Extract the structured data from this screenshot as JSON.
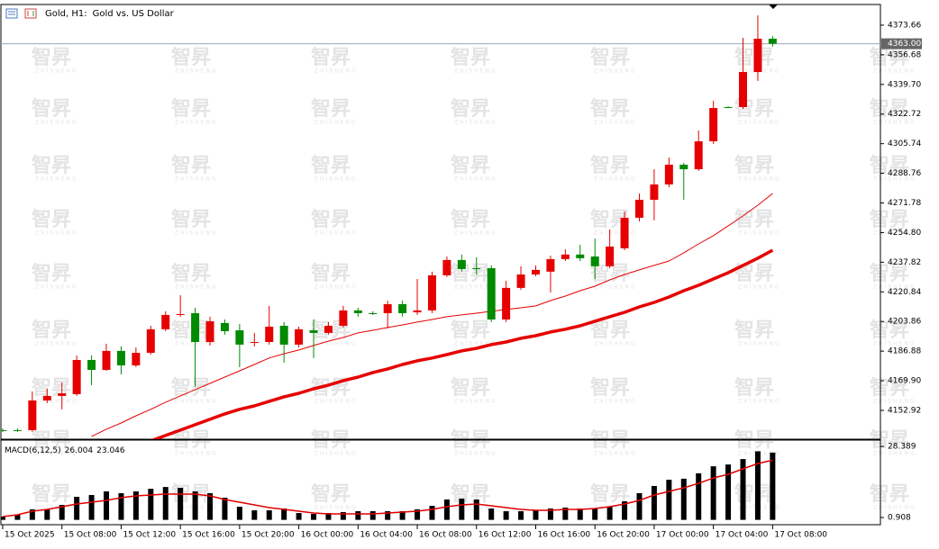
{
  "chart_data": [
    {
      "type": "candlestick",
      "title": "Gold, H1:",
      "subtitle": "Gold vs. US Dollar",
      "watermark": "智昇",
      "watermark_sub": "ZHISHENG",
      "categories": [
        "15 Oct 2025",
        null,
        null,
        null,
        "15 Oct 08:00",
        null,
        null,
        null,
        "15 Oct 12:00",
        null,
        null,
        null,
        "15 Oct 16:00",
        null,
        null,
        null,
        "15 Oct 20:00",
        null,
        null,
        null,
        "16 Oct 00:00",
        null,
        null,
        null,
        "16 Oct 04:00",
        null,
        null,
        null,
        "16 Oct 08:00",
        null,
        null,
        null,
        "16 Oct 12:00",
        null,
        null,
        null,
        "16 Oct 16:00",
        null,
        null,
        null,
        "16 Oct 20:00",
        null,
        null,
        null,
        "17 Oct 00:00",
        null,
        null,
        null,
        "17 Oct 04:00",
        null,
        null,
        null,
        "17 Oct 08:00"
      ],
      "open": [
        4141.6,
        4141.6,
        4141.6,
        4158.6,
        4161.2,
        4162.2,
        4181.8,
        4176.1,
        4187.0,
        4178.7,
        4185.9,
        4199.4,
        4207.6,
        4208.6,
        4192.1,
        4203.0,
        4198.8,
        4191.6,
        4192.1,
        4201.4,
        4190.6,
        4198.8,
        4197.3,
        4201.4,
        4210.2,
        4208.6,
        4208.6,
        4213.8,
        4209.1,
        4210.2,
        4230.3,
        4239.1,
        4234.4,
        4234.4,
        4205.0,
        4223.1,
        4230.8,
        4232.4,
        4239.6,
        4242.2,
        4241.1,
        4235.5,
        4245.8,
        4263.3,
        4273.6,
        4282.4,
        4293.7,
        4291.1,
        4307.1,
        4326.7,
        4326.7,
        4346.8,
        4365.9
      ],
      "high": [
        4142.6,
        4142.6,
        4163.8,
        4165.3,
        4168.9,
        4184.4,
        4184.4,
        4191.1,
        4189.6,
        4189.0,
        4201.4,
        4209.7,
        4218.9,
        4211.7,
        4206.6,
        4205.0,
        4202.4,
        4197.3,
        4212.8,
        4203.5,
        4200.9,
        4205.0,
        4203.5,
        4212.8,
        4211.7,
        4209.7,
        4215.8,
        4215.8,
        4228.2,
        4232.4,
        4241.1,
        4242.2,
        4240.6,
        4236.0,
        4227.2,
        4235.5,
        4236.0,
        4241.6,
        4245.2,
        4247.8,
        4251.4,
        4256.6,
        4266.9,
        4277.2,
        4291.1,
        4297.9,
        4294.8,
        4313.3,
        4330.3,
        4327.3,
        4366.4,
        4379.3,
        4367.5
      ],
      "low": [
        4140.6,
        4140.6,
        4140.6,
        4157.1,
        4153.5,
        4161.2,
        4167.4,
        4175.6,
        4173.6,
        4177.7,
        4184.9,
        4198.3,
        4206.6,
        4166.4,
        4190.1,
        4196.3,
        4177.7,
        4189.6,
        4190.6,
        4180.3,
        4189.0,
        4182.9,
        4196.3,
        4200.4,
        4206.6,
        4207.6,
        4199.9,
        4206.6,
        4207.6,
        4208.6,
        4229.3,
        4232.4,
        4230.8,
        4203.5,
        4203.5,
        4222.0,
        4229.8,
        4220.5,
        4238.5,
        4238.5,
        4228.2,
        4234.4,
        4244.7,
        4261.2,
        4261.8,
        4280.8,
        4273.6,
        4290.1,
        4305.6,
        4326.2,
        4325.7,
        4341.7,
        4361.3
      ],
      "close": [
        4141.6,
        4141.6,
        4158.6,
        4161.2,
        4162.7,
        4181.8,
        4176.1,
        4187.0,
        4178.7,
        4185.9,
        4199.4,
        4207.6,
        4208.1,
        4192.1,
        4204.0,
        4198.3,
        4190.6,
        4192.1,
        4200.9,
        4190.6,
        4199.4,
        4197.3,
        4201.4,
        4210.2,
        4208.6,
        4208.6,
        4213.8,
        4208.6,
        4210.2,
        4230.3,
        4239.1,
        4233.9,
        4234.4,
        4205.0,
        4223.1,
        4230.8,
        4233.4,
        4239.6,
        4242.2,
        4240.1,
        4235.5,
        4246.8,
        4263.3,
        4273.6,
        4282.4,
        4293.7,
        4291.1,
        4307.1,
        4326.2,
        4326.7,
        4346.8,
        4365.9,
        4363.0
      ],
      "up_color": "#e60000",
      "down_color": "#008a00",
      "lines": [
        {
          "color": "#e60000",
          "width": 1,
          "values": [
            null,
            null,
            null,
            null,
            null,
            null,
            4138.0,
            4142.1,
            4145.7,
            4149.8,
            4153.5,
            4157.6,
            4161.2,
            4164.8,
            4168.4,
            4172.0,
            4175.6,
            4179.2,
            4182.9,
            4185.4,
            4187.5,
            4190.1,
            4192.6,
            4194.7,
            4197.3,
            4198.8,
            4200.4,
            4201.9,
            4203.5,
            4205.0,
            4206.6,
            4207.6,
            4208.6,
            4209.7,
            4210.7,
            4211.7,
            4212.8,
            4215.8,
            4218.4,
            4221.5,
            4224.1,
            4227.7,
            4230.8,
            4233.4,
            4236.0,
            4238.5,
            4243.2,
            4248.3,
            4253.0,
            4258.7,
            4264.3,
            4270.5,
            4277.2
          ]
        },
        {
          "color": "#e60000",
          "width": 3.5,
          "values": [
            null,
            null,
            null,
            null,
            null,
            null,
            null,
            null,
            null,
            null,
            4135.4,
            4138.5,
            4141.6,
            4144.7,
            4147.8,
            4150.9,
            4153.5,
            4155.5,
            4158.1,
            4160.7,
            4162.7,
            4165.3,
            4167.4,
            4170.0,
            4172.0,
            4174.6,
            4176.7,
            4179.2,
            4181.3,
            4182.9,
            4184.9,
            4187.0,
            4188.5,
            4190.6,
            4192.1,
            4194.2,
            4195.7,
            4197.8,
            4199.4,
            4201.4,
            4204.0,
            4206.6,
            4209.1,
            4212.2,
            4214.8,
            4217.9,
            4221.5,
            4224.6,
            4228.2,
            4231.8,
            4236.0,
            4240.1,
            4244.7
          ]
        }
      ],
      "last_price": {
        "value": 4363,
        "label": "4363.00"
      },
      "ylim": [
        4136.4,
        4385.5
      ],
      "yticks": [
        4373.66,
        4356.68,
        {
          "value": 4339.7,
          "label": "4339.70"
        },
        4322.72,
        4305.74,
        4288.76,
        4271.78,
        {
          "value": 4254.8,
          "label": "4254.80"
        },
        4237.82,
        4220.84,
        4203.86,
        4186.88,
        {
          "value": 4169.9,
          "label": "4169.90"
        },
        4152.92
      ]
    },
    {
      "type": "bar",
      "title": "MACD(6,12,5)",
      "color": "#000000",
      "values": [
        1.25,
        1.95,
        4.04,
        4.04,
        5.78,
        8.91,
        9.6,
        11.0,
        10.3,
        11.0,
        12.0,
        12.7,
        12.4,
        11.0,
        10.3,
        8.56,
        5.08,
        3.69,
        3.69,
        4.38,
        2.64,
        2.3,
        2.64,
        2.99,
        3.34,
        3.34,
        3.34,
        3.34,
        4.04,
        5.43,
        7.87,
        8.21,
        7.87,
        4.38,
        3.34,
        3.34,
        3.69,
        4.38,
        4.73,
        4.38,
        4.38,
        5.08,
        7.17,
        10.3,
        13.1,
        15.5,
        15.9,
        18.0,
        20.7,
        21.4,
        23.5,
        26.5,
        26.004
      ],
      "signal": {
        "color": "#e00000",
        "values": [
          1.25,
          1.95,
          3.34,
          4.04,
          5.08,
          6.12,
          6.82,
          7.52,
          8.56,
          9.26,
          9.6,
          9.95,
          9.95,
          9.95,
          9.26,
          7.86,
          6.82,
          5.78,
          4.73,
          4.04,
          3.34,
          2.64,
          2.3,
          2.3,
          2.3,
          2.3,
          2.64,
          2.99,
          3.34,
          4.04,
          5.08,
          5.78,
          6.12,
          5.43,
          4.73,
          4.04,
          3.69,
          3.69,
          4.04,
          4.04,
          4.38,
          5.08,
          6.12,
          7.52,
          9.6,
          11.0,
          12.4,
          14.1,
          16.2,
          17.6,
          19.7,
          21.8,
          23.046
        ]
      },
      "ylim": [
        -1.87,
        30.48
      ],
      "yticks": [
        28.389,
        0.908
      ]
    }
  ]
}
